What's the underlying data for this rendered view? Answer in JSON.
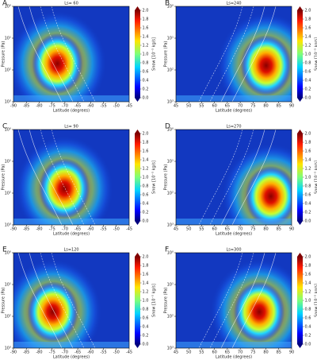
{
  "chart_data": [
    {
      "type": "heatmap",
      "label": "A",
      "title": "Ls= 60",
      "xlabel": "Latitude (degrees)",
      "ylabel": "Pressure (Pa)",
      "colorbar_label": "Snow [10⁻⁵ kg/s]",
      "xlim": [
        -90,
        -45
      ],
      "xticks": [
        -90,
        -85,
        -80,
        -75,
        -70,
        -65,
        -60,
        -55,
        -50,
        -45
      ],
      "yscale": "log",
      "ylim": [
        1000,
        1
      ],
      "yticks": [
        {
          "value": 1,
          "label": "10⁰"
        },
        {
          "value": 10,
          "label": "10¹"
        },
        {
          "value": 100,
          "label": "10²"
        },
        {
          "value": 1000,
          "label": "10³"
        }
      ],
      "clim": [
        0,
        2
      ],
      "cticks": [
        {
          "value": 0,
          "label": "0.0"
        },
        0.2,
        0.4,
        0.6,
        0.8,
        {
          "value": 1,
          "label": "1.0"
        },
        1.2,
        1.4,
        1.6,
        1.8,
        {
          "value": 2,
          "label": "2.0"
        }
      ]
    },
    {
      "type": "heatmap",
      "label": "B",
      "title": "Ls=240",
      "xlabel": "Latitude (degrees)",
      "ylabel": "Pressure (Pa)",
      "colorbar_label": "Snow [10⁻⁵ kg/s]",
      "xlim": [
        45,
        90
      ],
      "xticks": [
        45,
        50,
        55,
        60,
        65,
        70,
        75,
        80,
        85,
        90
      ],
      "yscale": "log",
      "ylim": [
        1000,
        1
      ],
      "yticks": [
        {
          "value": 1,
          "label": "10⁰"
        },
        {
          "value": 10,
          "label": "10¹"
        },
        {
          "value": 100,
          "label": "10²"
        },
        {
          "value": 1000,
          "label": "10³"
        }
      ],
      "clim": [
        0,
        2
      ],
      "cticks": [
        {
          "value": 0,
          "label": "0.0"
        },
        0.2,
        0.4,
        0.6,
        0.8,
        {
          "value": 1,
          "label": "1.0"
        },
        1.2,
        1.4,
        1.6,
        1.8,
        {
          "value": 2,
          "label": "2.0"
        }
      ]
    },
    {
      "type": "heatmap",
      "label": "C",
      "title": "Ls= 90",
      "xlabel": "Latitude (degrees)",
      "ylabel": "Pressure (Pa)",
      "colorbar_label": "Snow [10⁻⁵ kg/s]",
      "xlim": [
        -90,
        -45
      ],
      "xticks": [
        -90,
        -85,
        -80,
        -75,
        -70,
        -65,
        -60,
        -55,
        -50,
        -45
      ],
      "yscale": "log",
      "ylim": [
        1000,
        1
      ],
      "yticks": [
        {
          "value": 1,
          "label": "10⁰"
        },
        {
          "value": 10,
          "label": "10¹"
        },
        {
          "value": 100,
          "label": "10²"
        },
        {
          "value": 1000,
          "label": "10³"
        }
      ],
      "clim": [
        0,
        2
      ],
      "cticks": [
        {
          "value": 0,
          "label": "0.0"
        },
        0.2,
        0.4,
        0.6,
        0.8,
        {
          "value": 1,
          "label": "1.0"
        },
        1.2,
        1.4,
        1.6,
        1.8,
        {
          "value": 2,
          "label": "2.0"
        }
      ]
    },
    {
      "type": "heatmap",
      "label": "D",
      "title": "Ls=270",
      "xlabel": "Latitude (degrees)",
      "ylabel": "Pressure (Pa)",
      "colorbar_label": "Snow [10⁻⁵ kg/s]",
      "xlim": [
        45,
        90
      ],
      "xticks": [
        45,
        50,
        55,
        60,
        65,
        70,
        75,
        80,
        85,
        90
      ],
      "yscale": "log",
      "ylim": [
        1000,
        1
      ],
      "yticks": [
        {
          "value": 1,
          "label": "10⁰"
        },
        {
          "value": 10,
          "label": "10¹"
        },
        {
          "value": 100,
          "label": "10²"
        },
        {
          "value": 1000,
          "label": "10³"
        }
      ],
      "clim": [
        0,
        2
      ],
      "cticks": [
        {
          "value": 0,
          "label": "0.0"
        },
        0.2,
        0.4,
        0.6,
        0.8,
        {
          "value": 1,
          "label": "1.0"
        },
        1.2,
        1.4,
        1.6,
        1.8,
        {
          "value": 2,
          "label": "2.0"
        }
      ]
    },
    {
      "type": "heatmap",
      "label": "E",
      "title": "Ls=120",
      "xlabel": "Latitude (degrees)",
      "ylabel": "Pressure (Pa)",
      "colorbar_label": "Snow [10⁻⁵ kg/s]",
      "xlim": [
        -90,
        -45
      ],
      "xticks": [
        -90,
        -85,
        -80,
        -75,
        -70,
        -65,
        -60,
        -55,
        -50,
        -45
      ],
      "yscale": "log",
      "ylim": [
        1000,
        1
      ],
      "yticks": [
        {
          "value": 1,
          "label": "10⁰"
        },
        {
          "value": 10,
          "label": "10¹"
        },
        {
          "value": 100,
          "label": "10²"
        },
        {
          "value": 1000,
          "label": "10³"
        }
      ],
      "clim": [
        0,
        2
      ],
      "cticks": [
        {
          "value": 0,
          "label": "0.0"
        },
        0.2,
        0.4,
        0.6,
        0.8,
        {
          "value": 1,
          "label": "1.0"
        },
        1.2,
        1.4,
        1.6,
        1.8,
        {
          "value": 2,
          "label": "2.0"
        }
      ]
    },
    {
      "type": "heatmap",
      "label": "F",
      "title": "Ls=300",
      "xlabel": "Latitude (degrees)",
      "ylabel": "Pressure (Pa)",
      "colorbar_label": "Snow [10⁻⁵ kg/s]",
      "xlim": [
        45,
        90
      ],
      "xticks": [
        45,
        50,
        55,
        60,
        65,
        70,
        75,
        80,
        85,
        90
      ],
      "yscale": "log",
      "ylim": [
        1000,
        1
      ],
      "yticks": [
        {
          "value": 1,
          "label": "10⁰"
        },
        {
          "value": 10,
          "label": "10¹"
        },
        {
          "value": 100,
          "label": "10²"
        },
        {
          "value": 1000,
          "label": "10³"
        }
      ],
      "clim": [
        0,
        2
      ],
      "cticks": [
        {
          "value": 0,
          "label": "0.0"
        },
        0.2,
        0.4,
        0.6,
        0.8,
        {
          "value": 1,
          "label": "1.0"
        },
        1.2,
        1.4,
        1.6,
        1.8,
        {
          "value": 2,
          "label": "2.0"
        }
      ]
    }
  ]
}
